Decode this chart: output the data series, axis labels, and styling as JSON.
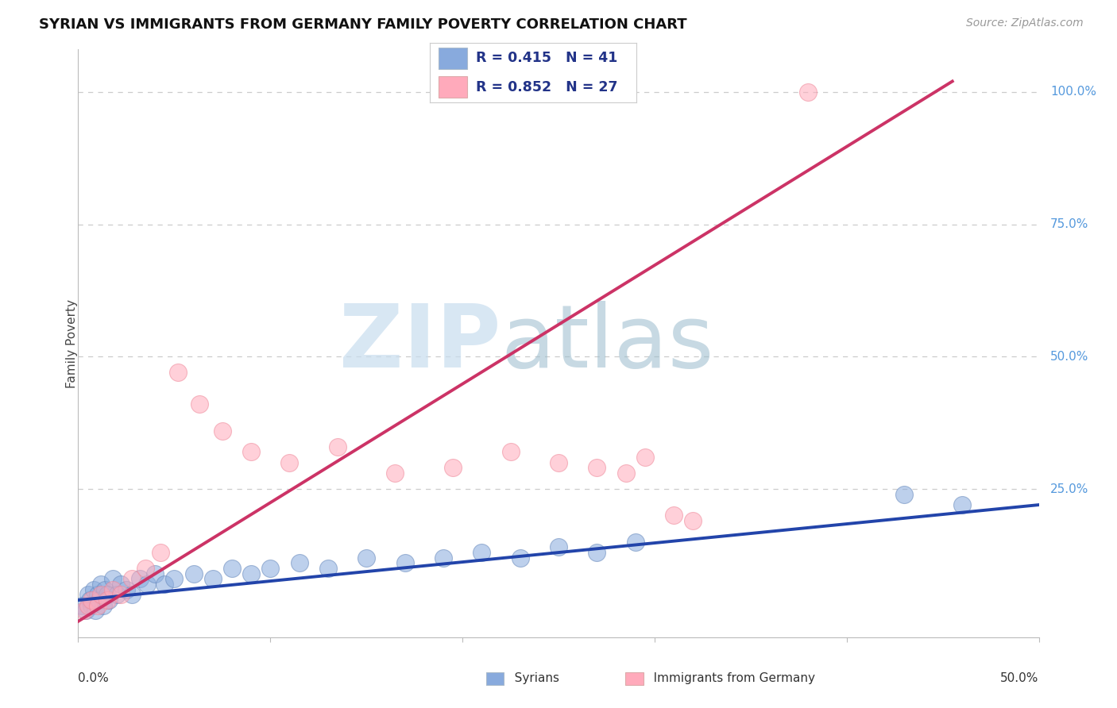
{
  "title": "SYRIAN VS IMMIGRANTS FROM GERMANY FAMILY POVERTY CORRELATION CHART",
  "source_text": "Source: ZipAtlas.com",
  "ylabel": "Family Poverty",
  "xlim": [
    0.0,
    0.5
  ],
  "ylim": [
    -0.03,
    1.08
  ],
  "legend_r_blue": "R = 0.415",
  "legend_n_blue": "N = 41",
  "legend_r_pink": "R = 0.852",
  "legend_n_pink": "N = 27",
  "blue_dot_color": "#88AADD",
  "blue_dot_edge": "#6688BB",
  "pink_dot_color": "#FFAABB",
  "pink_dot_edge": "#EE8899",
  "blue_line_color": "#2244AA",
  "pink_line_color": "#CC3366",
  "legend_text_color": "#223388",
  "watermark_zip_color": "#C8DDEF",
  "watermark_atlas_color": "#99BBCC",
  "right_label_color": "#5599DD",
  "grid_color": "#CCCCCC",
  "bg_color": "#FFFFFF",
  "ytick_vals": [
    0.25,
    0.5,
    0.75,
    1.0
  ],
  "ytick_labels": [
    "25.0%",
    "50.0%",
    "75.0%",
    "100.0%"
  ],
  "syrians_x": [
    0.002,
    0.004,
    0.005,
    0.006,
    0.007,
    0.008,
    0.009,
    0.01,
    0.011,
    0.012,
    0.013,
    0.014,
    0.015,
    0.016,
    0.018,
    0.02,
    0.022,
    0.025,
    0.028,
    0.032,
    0.036,
    0.04,
    0.045,
    0.05,
    0.06,
    0.07,
    0.08,
    0.09,
    0.1,
    0.115,
    0.13,
    0.15,
    0.17,
    0.19,
    0.21,
    0.23,
    0.25,
    0.27,
    0.29,
    0.43,
    0.46
  ],
  "syrians_y": [
    0.03,
    0.02,
    0.05,
    0.04,
    0.03,
    0.06,
    0.02,
    0.05,
    0.04,
    0.07,
    0.03,
    0.06,
    0.05,
    0.04,
    0.08,
    0.05,
    0.07,
    0.06,
    0.05,
    0.08,
    0.07,
    0.09,
    0.07,
    0.08,
    0.09,
    0.08,
    0.1,
    0.09,
    0.1,
    0.11,
    0.1,
    0.12,
    0.11,
    0.12,
    0.13,
    0.12,
    0.14,
    0.13,
    0.15,
    0.24,
    0.22
  ],
  "germany_x": [
    0.003,
    0.005,
    0.007,
    0.01,
    0.012,
    0.015,
    0.018,
    0.022,
    0.028,
    0.035,
    0.043,
    0.052,
    0.063,
    0.075,
    0.09,
    0.11,
    0.135,
    0.165,
    0.195,
    0.225,
    0.25,
    0.27,
    0.285,
    0.295,
    0.31,
    0.32,
    0.38
  ],
  "germany_y": [
    0.02,
    0.03,
    0.04,
    0.03,
    0.05,
    0.04,
    0.06,
    0.05,
    0.08,
    0.1,
    0.13,
    0.47,
    0.41,
    0.36,
    0.32,
    0.3,
    0.33,
    0.28,
    0.29,
    0.32,
    0.3,
    0.29,
    0.28,
    0.31,
    0.2,
    0.19,
    1.0
  ],
  "blue_line_x": [
    0.0,
    0.5
  ],
  "blue_line_y": [
    0.04,
    0.22
  ],
  "pink_line_x": [
    0.0,
    0.455
  ],
  "pink_line_y": [
    0.0,
    1.02
  ]
}
